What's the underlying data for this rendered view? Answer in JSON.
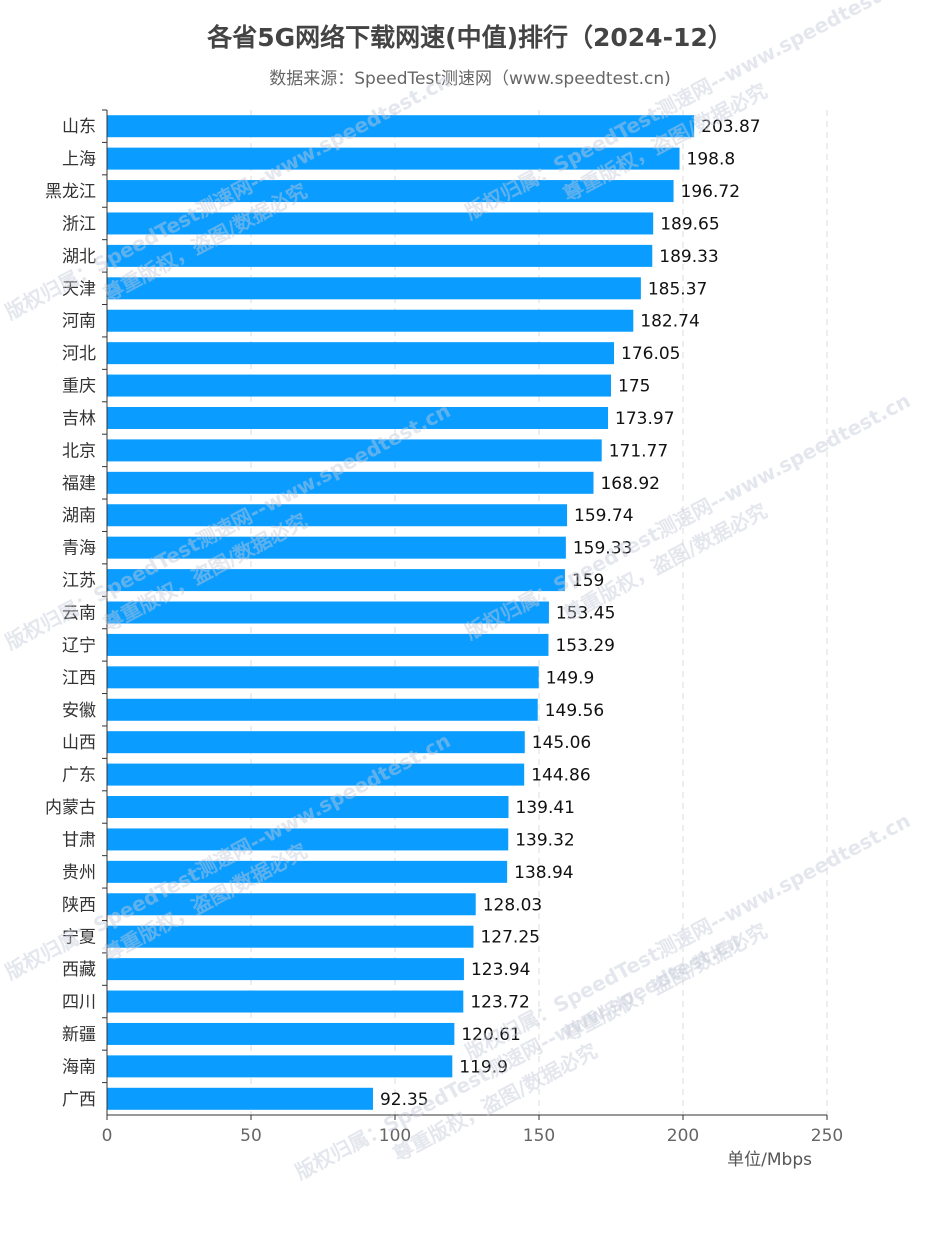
{
  "chart_data": {
    "type": "bar",
    "orientation": "horizontal",
    "title": "各省5G网络下载网速(中值)排行（2024-12）",
    "subtitle": "数据来源：SpeedTest测速网（www.speedtest.cn)",
    "unit_label": "单位/Mbps",
    "xlim": [
      0,
      250
    ],
    "x_ticks": [
      0,
      50,
      100,
      150,
      200,
      250
    ],
    "grid": "vertical dashed",
    "bar_color": "#0a9dff",
    "categories": [
      "山东",
      "上海",
      "黑龙江",
      "浙江",
      "湖北",
      "天津",
      "河南",
      "河北",
      "重庆",
      "吉林",
      "北京",
      "福建",
      "湖南",
      "青海",
      "江苏",
      "云南",
      "辽宁",
      "江西",
      "安徽",
      "山西",
      "广东",
      "内蒙古",
      "甘肃",
      "贵州",
      "陕西",
      "宁夏",
      "西藏",
      "四川",
      "新疆",
      "海南",
      "广西"
    ],
    "values": [
      203.87,
      198.8,
      196.72,
      189.65,
      189.33,
      185.37,
      182.74,
      176.05,
      175,
      173.97,
      171.77,
      168.92,
      159.74,
      159.33,
      159,
      153.45,
      153.29,
      149.9,
      149.56,
      145.06,
      144.86,
      139.41,
      139.32,
      138.94,
      128.03,
      127.25,
      123.94,
      123.72,
      120.61,
      119.9,
      92.35
    ],
    "value_labels": [
      "203.87",
      "198.8",
      "196.72",
      "189.65",
      "189.33",
      "185.37",
      "182.74",
      "176.05",
      "175",
      "173.97",
      "171.77",
      "168.92",
      "159.74",
      "159.33",
      "159",
      "153.45",
      "153.29",
      "149.9",
      "149.56",
      "145.06",
      "144.86",
      "139.41",
      "139.32",
      "138.94",
      "128.03",
      "127.25",
      "123.94",
      "123.72",
      "120.61",
      "119.9",
      "92.35"
    ]
  },
  "watermark": {
    "line1": "版权归属：SpeedTest测速网--www.speedtest.cn",
    "line2": "尊重版权，盗图/数据必究"
  }
}
